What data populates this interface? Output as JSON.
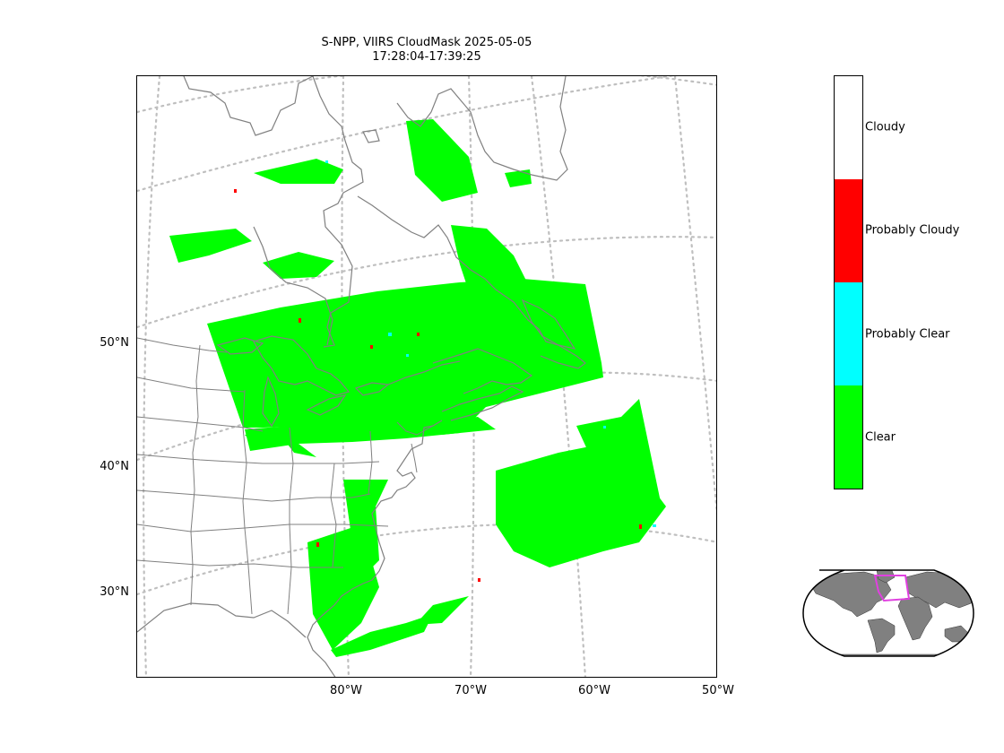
{
  "title": {
    "line1": "S-NPP, VIIRS CloudMask 2025-05-05",
    "line2": "17:28:04-17:39:25"
  },
  "map": {
    "latitude_labels": [
      "50°N",
      "40°N",
      "30°N"
    ],
    "longitude_labels": [
      "80°W",
      "70°W",
      "60°W",
      "50°W"
    ],
    "graticule": "dotted",
    "colors": {
      "coastline": "#808080",
      "graticule": "#bfbfbf",
      "frame": "#000000"
    }
  },
  "colorbar": {
    "categories": [
      {
        "label": "Cloudy",
        "color": "#ffffff"
      },
      {
        "label": "Probably Cloudy",
        "color": "#ff0000"
      },
      {
        "label": "Probably Clear",
        "color": "#00ffff"
      },
      {
        "label": "Clear",
        "color": "#00ff00"
      }
    ]
  },
  "inset": {
    "land_color": "#808080",
    "ocean_color": "#ffffff",
    "highlight_color": "#e040e0"
  }
}
